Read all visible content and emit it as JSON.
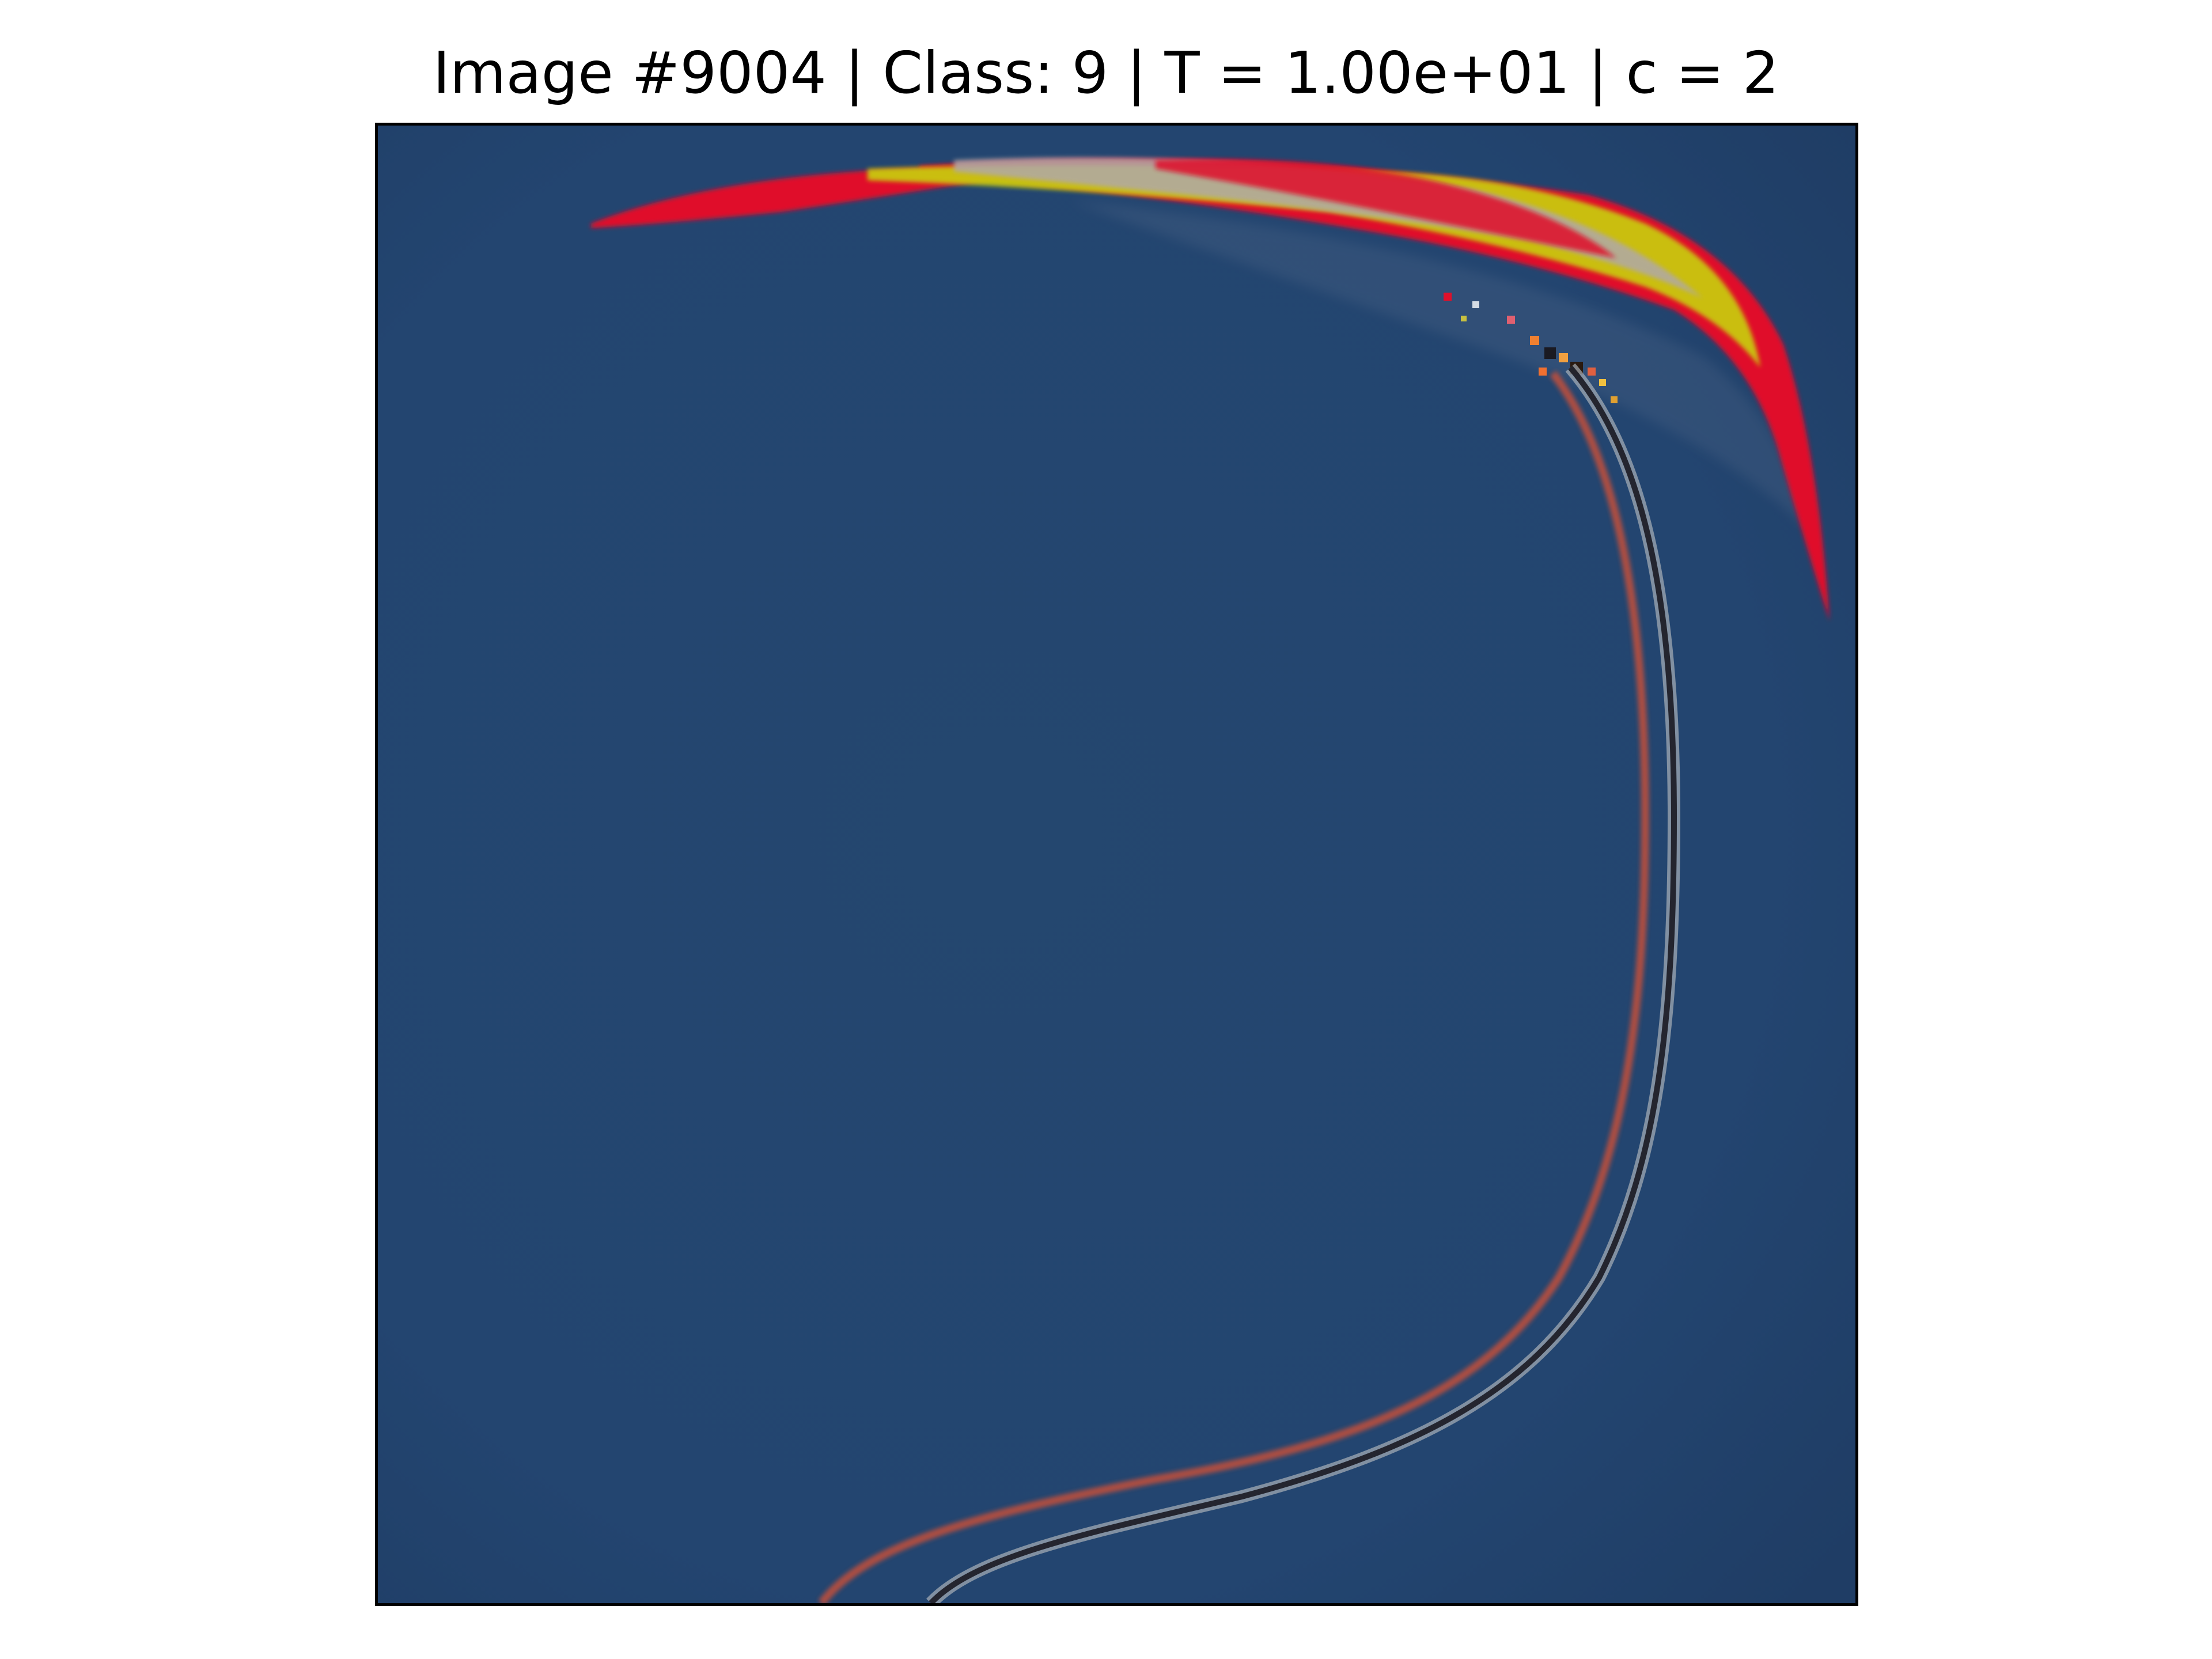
{
  "figure": {
    "title": "Image #9004 | Class: 9 | T = 1.00e+01 | c = 2"
  },
  "image": {
    "subject": "flowing curved streaks over a dark blue background",
    "colors": {
      "background": "#23456f",
      "background_edge": "#1d3b62",
      "red_streak": "#e0102a",
      "yellow_streak": "#c8d20a",
      "gray_streak": "#b0a8a8",
      "orange_line": "#c4503a",
      "dark_line": "#1a1a22",
      "light_line": "#a9b0b8"
    }
  }
}
